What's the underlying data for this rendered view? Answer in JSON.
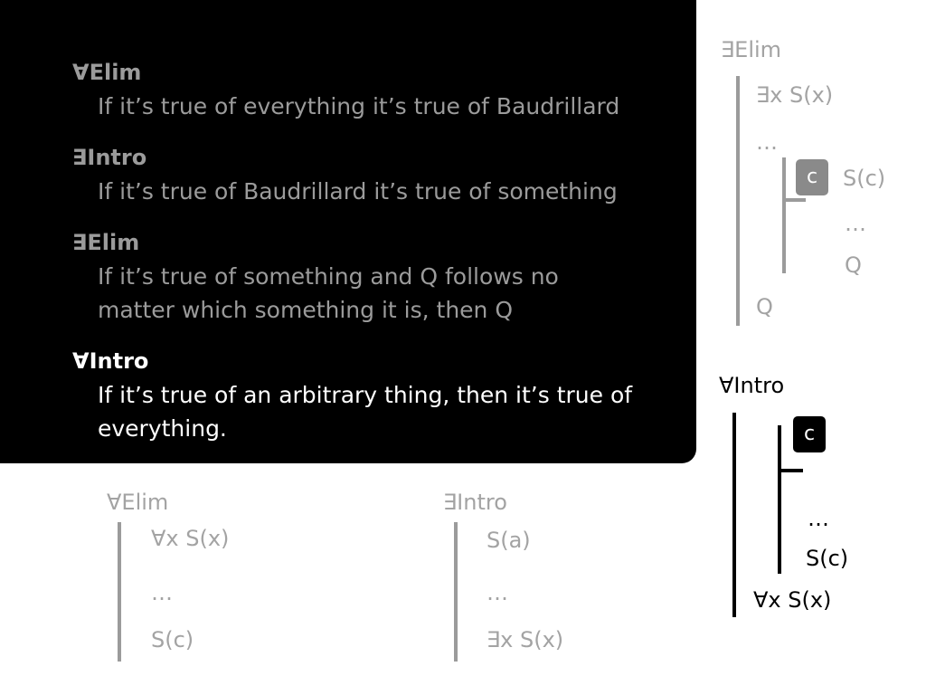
{
  "rules_panel": {
    "rules": [
      {
        "name": "∀Elim",
        "lines": [
          "If it’s true of everything it’s true of Baudrillard"
        ]
      },
      {
        "name": "∃Intro",
        "lines": [
          "If it’s true of Baudrillard it’s true of something"
        ]
      },
      {
        "name": "∃Elim",
        "lines": [
          "If it’s true of something and Q follows no",
          "matter which something it is, then Q"
        ]
      },
      {
        "name": "∀Intro",
        "lines": [
          "If it’s true of an arbitrary thing, then it’s true of",
          "everything."
        ]
      }
    ]
  },
  "diagrams": {
    "forall_elim": {
      "title": "∀Elim",
      "premise": "∀x S(x)",
      "dots": "…",
      "conclusion": "S(c)"
    },
    "exists_intro": {
      "title": "∃Intro",
      "premise": "S(a)",
      "dots": "…",
      "conclusion": "∃x S(x)"
    },
    "exists_elim": {
      "title": "∃Elim",
      "premise": "∃x S(x)",
      "dots": "…",
      "box": "c",
      "assumption": "S(c)",
      "inner_dots": "…",
      "inner_conclusion": "Q",
      "conclusion": "Q"
    },
    "forall_intro": {
      "title": "∀Intro",
      "box": "c",
      "inner_dots": "…",
      "inner_conclusion": "S(c)",
      "conclusion": "∀x S(x)"
    }
  },
  "colors": {
    "panel": "#000000",
    "inactive_text": "#9b9b9b",
    "active_text": "#ffffff",
    "diagram_gray": "#a3a3a3",
    "diagram_dark": "#000000"
  }
}
